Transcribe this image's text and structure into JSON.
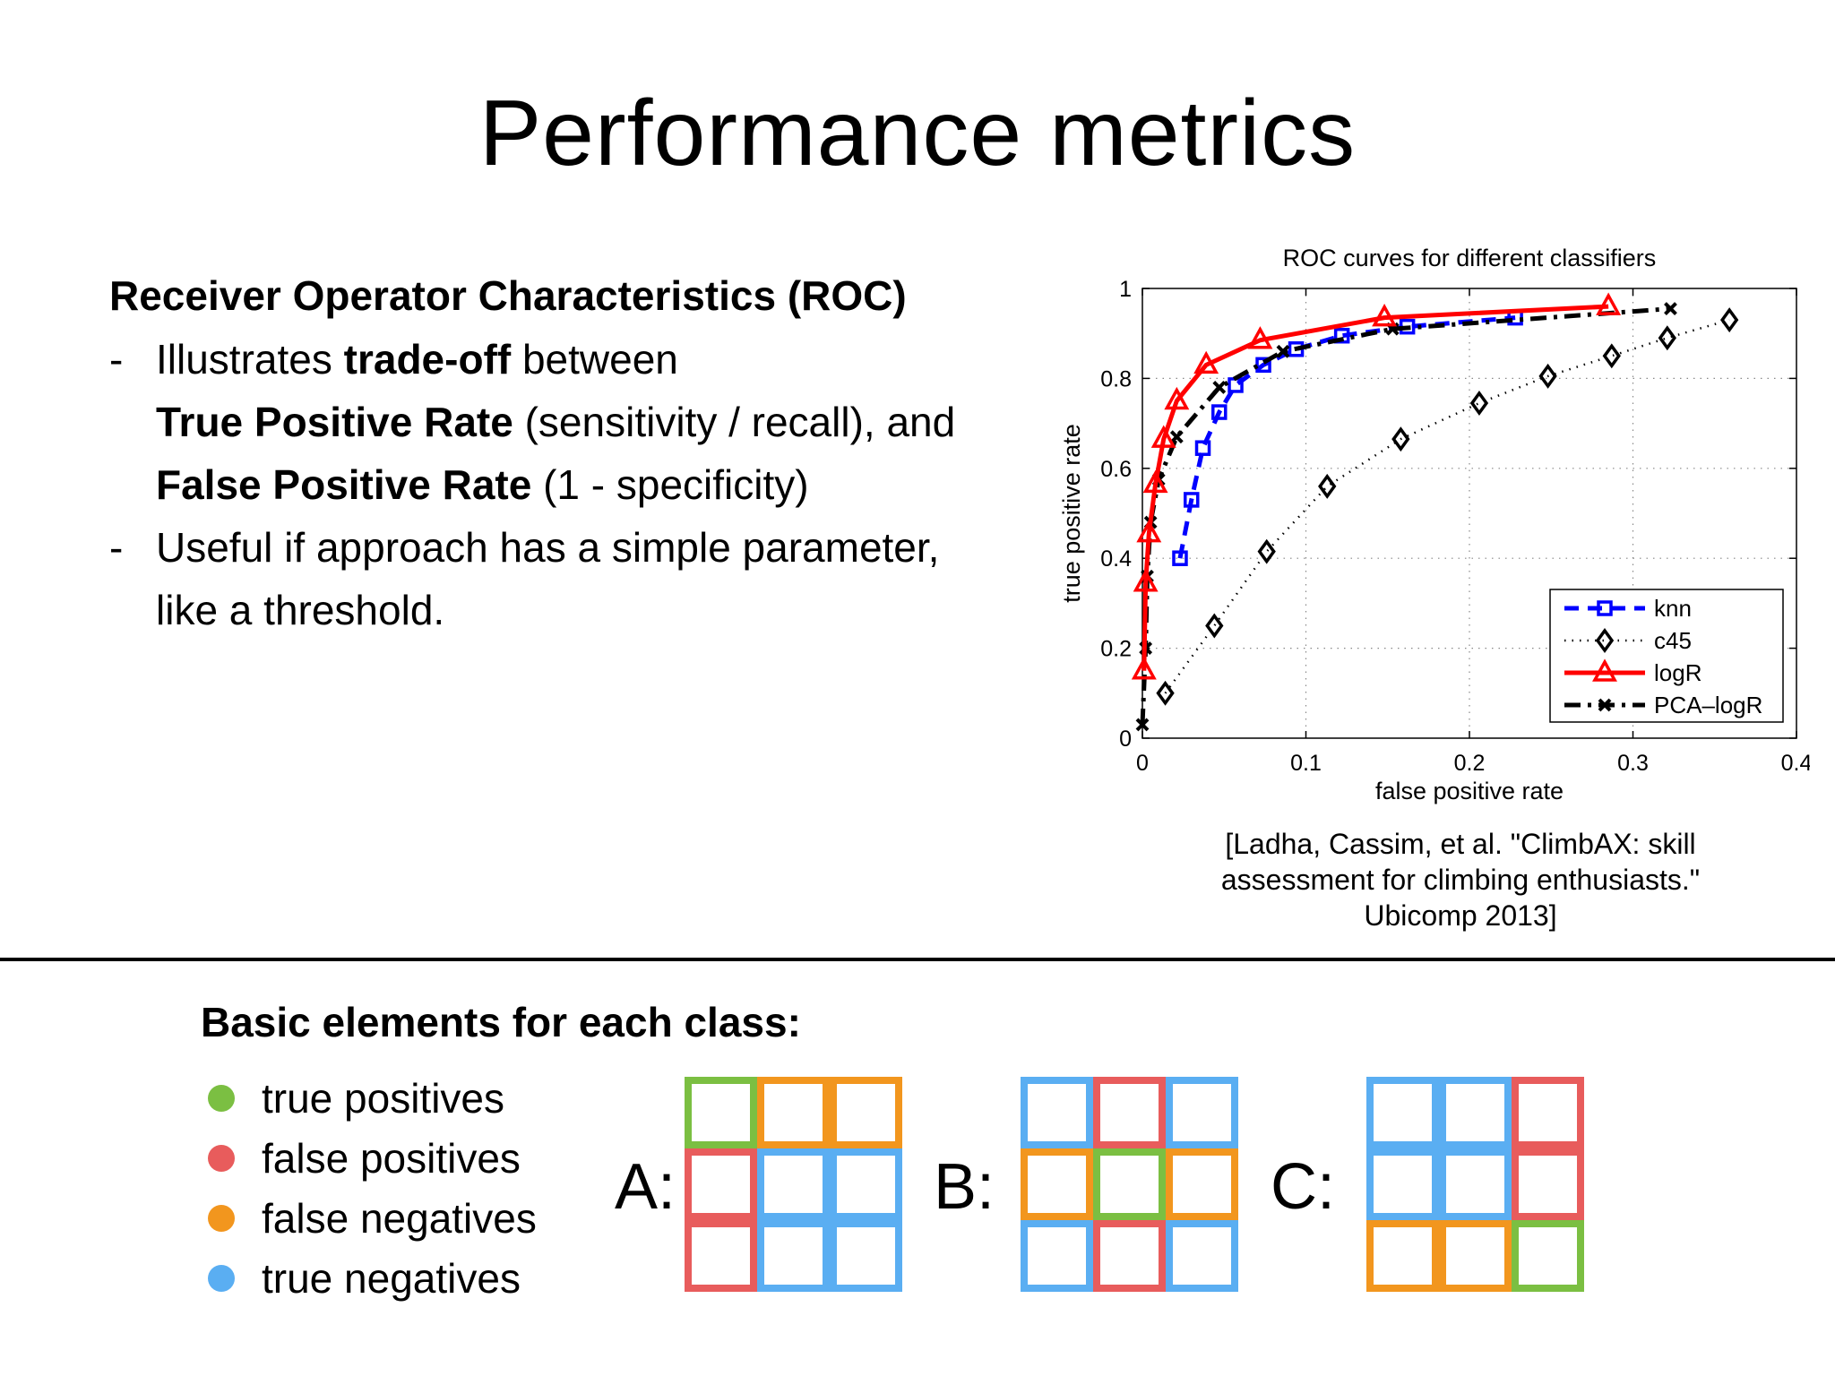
{
  "slide": {
    "title": "Performance metrics"
  },
  "roc_section": {
    "heading": "Receiver Operator Characteristics (ROC)",
    "bullet1": {
      "dash": "-",
      "line1_pre": "Illustrates ",
      "line1_bold": "trade-off",
      "line1_post": " between",
      "line2_bold": "True Positive Rate",
      "line2_post": " (sensitivity / recall), and",
      "line3_bold": "False Positive Rate",
      "line3_post": " (1 - specificity)"
    },
    "bullet2": {
      "dash": "-",
      "line1": "Useful if approach has a simple parameter,",
      "line2": "like a threshold."
    }
  },
  "citation": {
    "line1": "[Ladha, Cassim, et al. \"ClimbAX: skill",
    "line2": "assessment for climbing enthusiasts.\"",
    "line3": "Ubicomp 2013]"
  },
  "chart_data": {
    "type": "line",
    "title": "ROC curves for different classifiers",
    "xlabel": "false positive rate",
    "ylabel": "true positive rate",
    "xlim": [
      0,
      0.4
    ],
    "ylim": [
      0,
      1
    ],
    "xticks": [
      0,
      0.1,
      0.2,
      0.3,
      0.4
    ],
    "xtick_labels": [
      "0",
      "0.1",
      "0.2",
      "0.3",
      "0.4"
    ],
    "yticks": [
      0,
      0.2,
      0.4,
      0.6,
      0.8,
      1
    ],
    "ytick_labels": [
      "0",
      "0.2",
      "0.4",
      "0.6",
      "0.8",
      "1"
    ],
    "grid": true,
    "legend_position": "bottom-right",
    "series": [
      {
        "name": "knn",
        "color": "#0000ff",
        "line_style": "dashed",
        "marker": "square",
        "x": [
          0.023,
          0.03,
          0.037,
          0.047,
          0.057,
          0.074,
          0.094,
          0.122,
          0.162,
          0.228
        ],
        "y": [
          0.4,
          0.53,
          0.645,
          0.725,
          0.785,
          0.83,
          0.865,
          0.895,
          0.915,
          0.935
        ]
      },
      {
        "name": "c45",
        "color": "#000000",
        "line_style": "dotted",
        "marker": "diamond",
        "x": [
          0.014,
          0.044,
          0.076,
          0.113,
          0.158,
          0.206,
          0.248,
          0.287,
          0.321,
          0.359
        ],
        "y": [
          0.1,
          0.25,
          0.415,
          0.56,
          0.665,
          0.745,
          0.805,
          0.85,
          0.89,
          0.93
        ]
      },
      {
        "name": "logR",
        "color": "#ff0000",
        "line_style": "solid",
        "marker": "triangle",
        "x": [
          0.001,
          0.002,
          0.004,
          0.008,
          0.013,
          0.021,
          0.039,
          0.072,
          0.148,
          0.285
        ],
        "y": [
          0.15,
          0.345,
          0.455,
          0.565,
          0.665,
          0.75,
          0.83,
          0.885,
          0.935,
          0.96
        ]
      },
      {
        "name": "PCA–logR",
        "color": "#000000",
        "line_style": "dashdot",
        "marker": "x",
        "x": [
          0.0,
          0.002,
          0.003,
          0.005,
          0.01,
          0.021,
          0.047,
          0.086,
          0.153,
          0.323
        ],
        "y": [
          0.03,
          0.2,
          0.36,
          0.48,
          0.575,
          0.67,
          0.78,
          0.86,
          0.91,
          0.955
        ]
      }
    ]
  },
  "basic_elements": {
    "title": "Basic elements for each class:",
    "legend": [
      {
        "label": "true positives",
        "color": "#7bbf42"
      },
      {
        "label": "false positives",
        "color": "#e85c5c"
      },
      {
        "label": "false negatives",
        "color": "#f2961e"
      },
      {
        "label": "true negatives",
        "color": "#5aaef2"
      }
    ],
    "matrices": [
      {
        "label": "A:",
        "cells": [
          "tp",
          "fn",
          "fn",
          "fp",
          "tn",
          "tn",
          "fp",
          "tn",
          "tn"
        ]
      },
      {
        "label": "B:",
        "cells": [
          "tn",
          "fp",
          "tn",
          "fn",
          "tp",
          "fn",
          "tn",
          "fp",
          "tn"
        ]
      },
      {
        "label": "C:",
        "cells": [
          "tn",
          "tn",
          "fp",
          "tn",
          "tn",
          "fp",
          "fn",
          "fn",
          "tp"
        ]
      }
    ]
  }
}
